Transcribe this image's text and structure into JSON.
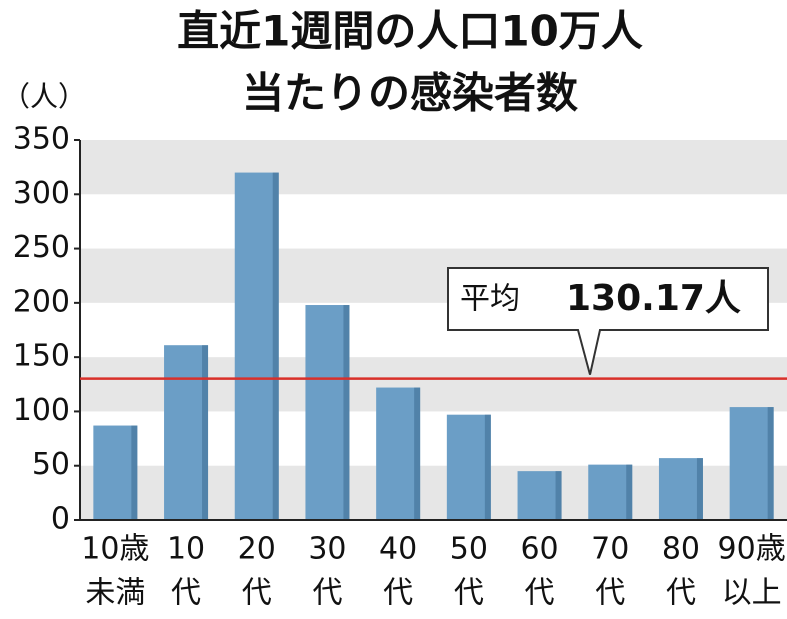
{
  "chart_data": {
    "type": "bar",
    "title": [
      "直近1週間の人口10万人",
      "当たりの感染者数"
    ],
    "y_label": "（人）",
    "categories": [
      [
        "10歳",
        "未満"
      ],
      [
        "10",
        "代"
      ],
      [
        "20",
        "代"
      ],
      [
        "30",
        "代"
      ],
      [
        "40",
        "代"
      ],
      [
        "50",
        "代"
      ],
      [
        "60",
        "代"
      ],
      [
        "70",
        "代"
      ],
      [
        "80",
        "代"
      ],
      [
        "90歳",
        "以上"
      ]
    ],
    "values": [
      87,
      161,
      320,
      198,
      122,
      97,
      45,
      51,
      57,
      104
    ],
    "color": "#6b9ec6",
    "ylim": [
      0,
      350
    ],
    "yticks": [
      0,
      50,
      100,
      150,
      200,
      250,
      300,
      350
    ],
    "grid_bands": true,
    "reference_line": {
      "value": 130.17,
      "label": "平均",
      "value_label": "130.17人",
      "color": "#d9302a"
    }
  }
}
